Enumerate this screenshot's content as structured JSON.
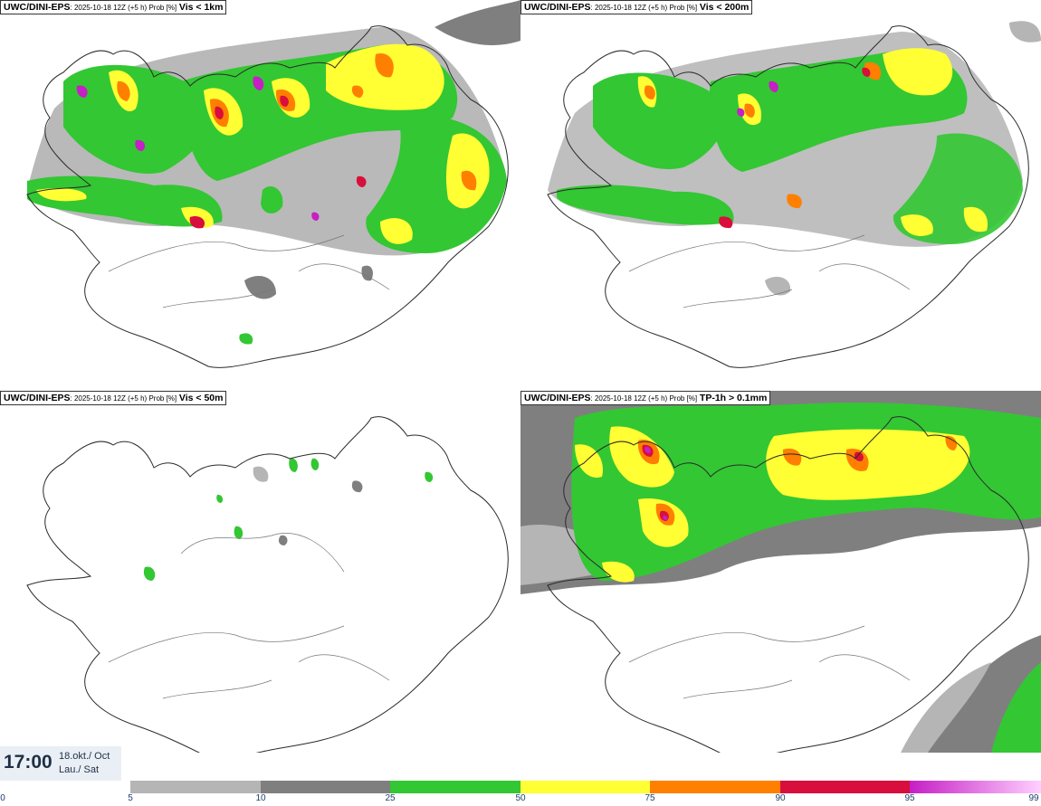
{
  "panels": [
    {
      "model": "UWC/DINI-EPS",
      "run": ": 2025-10-18 12Z (+5 h) Prob [%]",
      "variable": "Vis < 1km"
    },
    {
      "model": "UWC/DINI-EPS",
      "run": ": 2025-10-18 12Z (+5 h) Prob [%]",
      "variable": "Vis < 200m"
    },
    {
      "model": "UWC/DINI-EPS",
      "run": ": 2025-10-18 12Z (+5 h) Prob [%]",
      "variable": "Vis < 50m"
    },
    {
      "model": "UWC/DINI-EPS",
      "run": ": 2025-10-18 12Z (+5 h) Prob [%]",
      "variable": "TP-1h > 0.1mm"
    }
  ],
  "time": {
    "clock": "17:00",
    "date": "18.okt./ Oct",
    "day": "Lau./ Sat"
  },
  "colorbar": {
    "ticks": [
      "0",
      "5",
      "10",
      "25",
      "50",
      "75",
      "90",
      "95",
      "99"
    ],
    "colors": [
      "#b5b5b5",
      "#7f7f7f",
      "#33c733",
      "#ffff33",
      "#ff7f00",
      "#d80f3c",
      "#c51fc5"
    ],
    "last_gradient_end": "#ffd0ff"
  },
  "colors": {
    "outline": "#2b2b2b",
    "roads": "#555555",
    "background": "#ffffff"
  }
}
